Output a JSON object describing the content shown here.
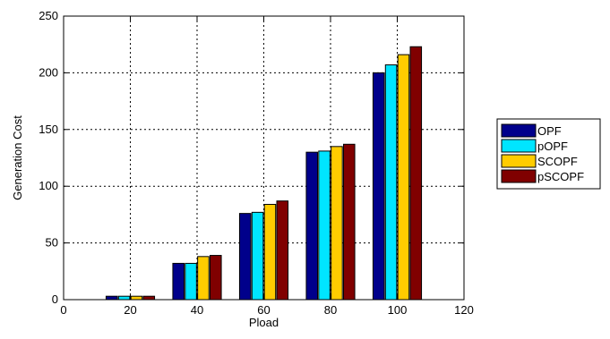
{
  "chart_data": {
    "type": "bar",
    "x": [
      20,
      40,
      60,
      80,
      100
    ],
    "series": [
      {
        "name": "OPF",
        "values": [
          3,
          32,
          76,
          130,
          200
        ],
        "color": "#00008b"
      },
      {
        "name": "pOPF",
        "values": [
          3,
          32,
          77,
          131,
          207
        ],
        "color": "#00e5ff"
      },
      {
        "name": "SCOPF",
        "values": [
          3,
          38,
          84,
          135,
          216
        ],
        "color": "#ffcc00"
      },
      {
        "name": "pSCOPF",
        "values": [
          3,
          39,
          87,
          137,
          223
        ],
        "color": "#800000"
      }
    ],
    "xlabel": "Pload",
    "ylabel": "Generation Cost",
    "xlim": [
      0,
      120
    ],
    "ylim": [
      0,
      250
    ],
    "xticks": [
      "0",
      "20",
      "40",
      "60",
      "80",
      "100",
      "120"
    ],
    "yticks": [
      "0",
      "50",
      "100",
      "150",
      "200",
      "250"
    ],
    "grid": true,
    "legend_position": "right"
  }
}
